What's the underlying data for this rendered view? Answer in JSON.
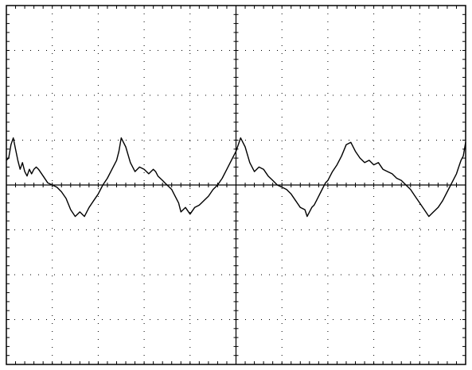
{
  "chart_data": {
    "type": "line",
    "title": "",
    "xlabel": "",
    "ylabel": "",
    "grid": true,
    "grid_divisions": {
      "x": 10,
      "y": 8
    },
    "xlim": [
      0,
      10
    ],
    "ylim": [
      -4,
      4
    ],
    "colors": {
      "background": "#ffffff",
      "trace": "#000000",
      "frame": "#000000",
      "grid": "#000000"
    },
    "series": [
      {
        "x": [
          0,
          0.05,
          0.1,
          0.15,
          0.2,
          0.25,
          0.3,
          0.35,
          0.4,
          0.45,
          0.5,
          0.55,
          0.6,
          0.65,
          0.7,
          0.8,
          0.9,
          1.0,
          1.1,
          1.2,
          1.3,
          1.4,
          1.5,
          1.6,
          1.7,
          1.8,
          1.9,
          2.0,
          2.1,
          2.2,
          2.3,
          2.4,
          2.45,
          2.5,
          2.6,
          2.7,
          2.8,
          2.9,
          3.0,
          3.1,
          3.2,
          3.25,
          3.3,
          3.35,
          3.4,
          3.45,
          3.5,
          3.55,
          3.6,
          3.65,
          3.7,
          3.75,
          3.8,
          3.9,
          4.0,
          4.1,
          4.2,
          4.3,
          4.4,
          4.5,
          4.6,
          4.7,
          4.8,
          4.9,
          5.0,
          5.1,
          5.2,
          5.3,
          5.4,
          5.5,
          5.6,
          5.7,
          5.8,
          5.9,
          6.0,
          6.1,
          6.2,
          6.3,
          6.4,
          6.5,
          6.55,
          6.6,
          6.65,
          6.7,
          6.75,
          6.8,
          6.85,
          6.9,
          6.95,
          7.0,
          7.05,
          7.1,
          7.2,
          7.3,
          7.4,
          7.5,
          7.6,
          7.7,
          7.8,
          7.9,
          8.0,
          8.1,
          8.2,
          8.3,
          8.4,
          8.5,
          8.6,
          8.7,
          8.8,
          8.9,
          9.0,
          9.1,
          9.2,
          9.3,
          9.4,
          9.5,
          9.6,
          9.7,
          9.8,
          9.85,
          9.9,
          9.95,
          10.0
        ],
        "y": [
          0.55,
          0.6,
          0.9,
          1.05,
          0.8,
          0.55,
          0.35,
          0.5,
          0.3,
          0.2,
          0.35,
          0.25,
          0.35,
          0.4,
          0.35,
          0.2,
          0.05,
          0.0,
          -0.05,
          -0.15,
          -0.3,
          -0.55,
          -0.7,
          -0.6,
          -0.7,
          -0.5,
          -0.35,
          -0.2,
          0.0,
          0.15,
          0.35,
          0.55,
          0.75,
          1.05,
          0.85,
          0.5,
          0.3,
          0.4,
          0.35,
          0.25,
          0.35,
          0.3,
          0.2,
          0.15,
          0.1,
          0.05,
          0.0,
          -0.05,
          -0.1,
          -0.2,
          -0.3,
          -0.4,
          -0.6,
          -0.5,
          -0.65,
          -0.5,
          -0.45,
          -0.35,
          -0.25,
          -0.1,
          0.0,
          0.15,
          0.35,
          0.55,
          0.75,
          1.05,
          0.85,
          0.5,
          0.3,
          0.4,
          0.35,
          0.2,
          0.1,
          0.0,
          -0.05,
          -0.1,
          -0.2,
          -0.35,
          -0.5,
          -0.55,
          -0.7,
          -0.6,
          -0.5,
          -0.45,
          -0.35,
          -0.25,
          -0.15,
          -0.05,
          0.05,
          0.1,
          0.2,
          0.3,
          0.45,
          0.65,
          0.9,
          0.95,
          0.75,
          0.6,
          0.5,
          0.55,
          0.45,
          0.5,
          0.35,
          0.3,
          0.25,
          0.15,
          0.1,
          0.0,
          -0.1,
          -0.25,
          -0.4,
          -0.55,
          -0.7,
          -0.6,
          -0.5,
          -0.35,
          -0.15,
          0.05,
          0.25,
          0.4,
          0.55,
          0.65,
          0.95
        ]
      }
    ]
  }
}
